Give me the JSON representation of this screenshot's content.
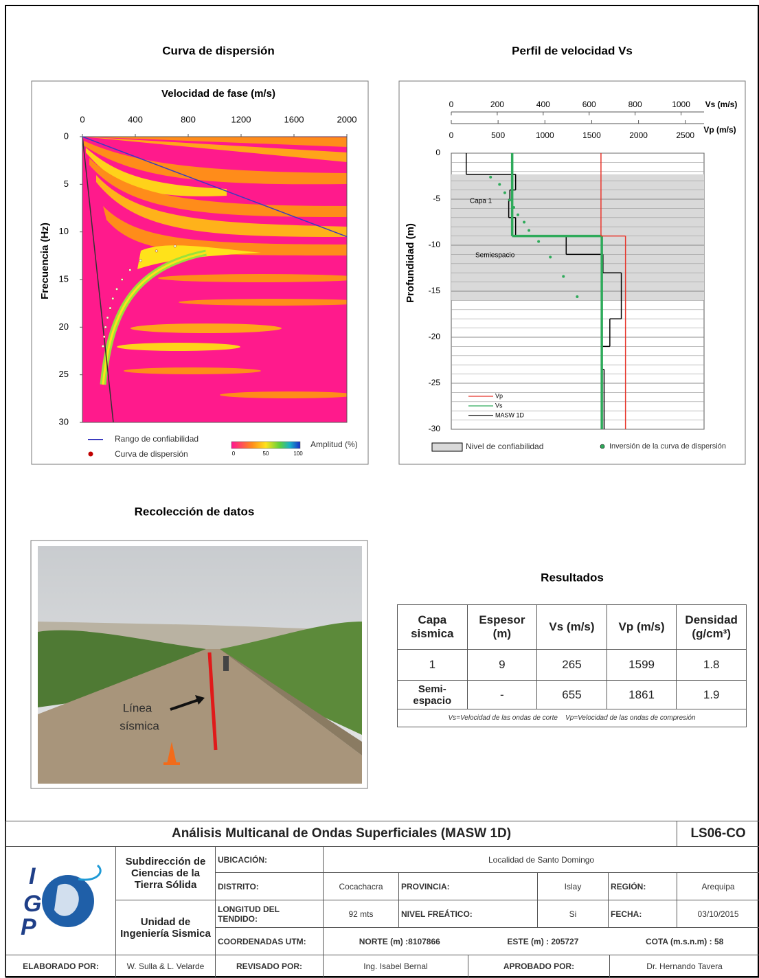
{
  "titles": {
    "dispersion": "Curva de dispersión",
    "profile": "Perfil de velocidad Vs",
    "photo": "Recolección de datos",
    "results": "Resultados"
  },
  "dispersion": {
    "type": "scatter",
    "title": "Velocidad de fase (m/s)",
    "ylabel": "Frecuencia (Hz)",
    "xlim": [
      0,
      2000
    ],
    "xticks": [
      0,
      400,
      800,
      1200,
      1600,
      2000
    ],
    "ylim": [
      0,
      30
    ],
    "yticks": [
      0,
      5,
      10,
      15,
      20,
      25,
      30
    ],
    "reliability": {
      "name": "Rango de confiabilidad",
      "color": "#3b3bbf",
      "x": [
        0,
        2000
      ],
      "y": [
        0,
        10.5
      ]
    },
    "curve": {
      "name": "Curva de dispersión",
      "color": "#c00000",
      "x": [
        700,
        560,
        440,
        360,
        300,
        260,
        230,
        210,
        190,
        175,
        165,
        155
      ],
      "y": [
        11.5,
        12,
        13,
        14,
        15,
        16,
        17,
        18,
        19,
        20,
        21,
        22
      ]
    },
    "colorbar": {
      "label": "Amplitud (%)",
      "ticks": [
        0,
        50,
        100
      ]
    }
  },
  "profile": {
    "type": "step",
    "vs_label": "Vs (m/s)",
    "vp_label": "Vp (m/s)",
    "ylabel": "Profundidad (m)",
    "vslim": [
      0,
      1100
    ],
    "vsticks": [
      0,
      200,
      400,
      600,
      800,
      1000
    ],
    "vplim": [
      0,
      2700
    ],
    "vpticks": [
      0,
      500,
      1000,
      1500,
      2000,
      2500
    ],
    "ylim": [
      -30,
      0
    ],
    "yticks": [
      0,
      -5,
      -10,
      -15,
      -20,
      -25,
      -30
    ],
    "reliability": {
      "name": "Nivel de confiabilidad",
      "depth": [
        -2.3,
        -16
      ]
    },
    "layer_labels": [
      "Capa 1",
      "Semiespacio"
    ],
    "series": [
      {
        "name": "Vp",
        "color": "#e8352b",
        "axis": "vp",
        "values": [
          1599,
          1861
        ],
        "depths": [
          0,
          -9,
          -30
        ]
      },
      {
        "name": "Vs",
        "color": "#2eaa5a",
        "axis": "vs",
        "values": [
          265,
          655
        ],
        "depths": [
          0,
          -9,
          -30
        ]
      },
      {
        "name": "MASW 1D",
        "color": "#000000",
        "axis": "vs",
        "values": [
          65,
          280,
          255,
          250,
          280,
          500,
          660,
          740,
          690,
          655,
          665
        ],
        "depths": [
          0,
          -2.3,
          -4,
          -5,
          -7,
          -9,
          -11,
          -13,
          -18,
          -21,
          -23.5,
          -30
        ]
      }
    ],
    "inversion": {
      "name": "Inversión de la curva de dispersión",
      "color": "#2eaa5a",
      "vs": [
        171,
        210,
        233,
        254,
        272,
        290,
        317,
        338,
        380,
        431,
        488,
        548
      ],
      "depth": [
        -2.6,
        -3.4,
        -4.3,
        -5.1,
        -5.9,
        -6.7,
        -7.5,
        -8.4,
        -9.6,
        -11.3,
        -13.4,
        -15.6
      ]
    }
  },
  "photo_label": [
    "Línea",
    "sísmica"
  ],
  "results": {
    "headers": [
      "Capa sismica",
      "Espesor (m)",
      "Vs (m/s)",
      "Vp (m/s)",
      "Densidad (g/cm³)"
    ],
    "rows": [
      [
        "1",
        9,
        265,
        1599,
        1.8
      ],
      [
        "Semi-espacio",
        "-",
        655,
        1861,
        1.9
      ]
    ],
    "notes": [
      "Vs=Velocidad de las ondas de corte",
      "Vp=Velocidad de las ondas de compresión"
    ]
  },
  "footer": {
    "title": "Análisis Multicanal de Ondas Superficiales (MASW 1D)",
    "code": "LS06-CO",
    "logo": [
      "I",
      "G",
      "P"
    ],
    "subdireccion": "Subdirección de Ciencias de la Tierra Sólida",
    "unidad": "Unidad de Ingeniería Sismica",
    "ubicacion": [
      "UBICACIÓN:",
      "Localidad de Santo Domingo"
    ],
    "distrito": [
      "DISTRITO:",
      "Cocachacra",
      "PROVINCIA:",
      "Islay",
      "REGIÓN:",
      "Arequipa"
    ],
    "longitud": [
      "LONGITUD DEL TENDIDO:",
      "92 mts",
      "NIVEL FREÁTICO:",
      "Si",
      "FECHA:",
      "03/10/2015"
    ],
    "coordenadas": [
      "COORDENADAS UTM:",
      "NORTE (m) :8107866",
      "ESTE (m) : 205727",
      "COTA (m.s.n.m) : 58"
    ],
    "firmas": [
      "ELABORADO POR:",
      "W. Sulla & L. Velarde",
      "REVISADO POR:",
      "Ing. Isabel Bernal",
      "APROBADO POR:",
      "Dr. Hernando Tavera"
    ]
  }
}
